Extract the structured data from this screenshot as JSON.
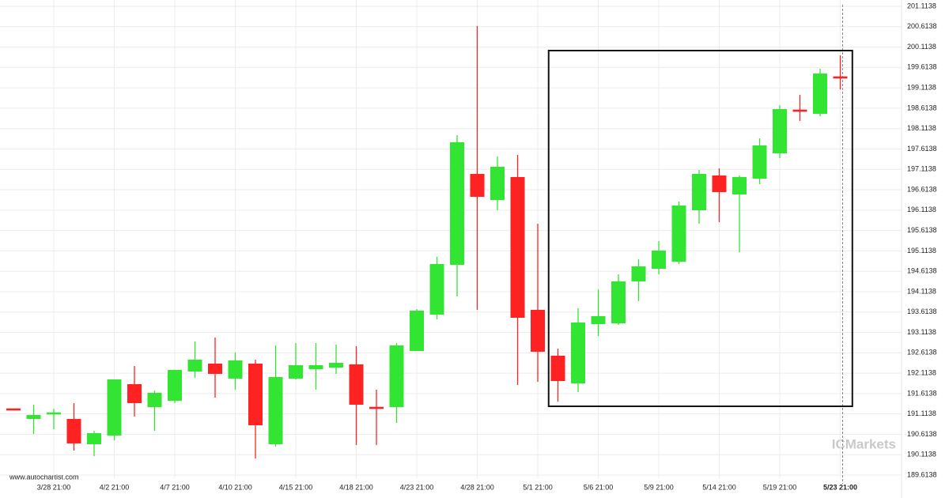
{
  "chart_data": {
    "type": "candlestick",
    "source": "www.autochartist.com",
    "watermark": "ICMarkets",
    "up_color": "#33e533",
    "down_color": "#ff2222",
    "categories": [
      null,
      null,
      "3/28 21:00",
      null,
      null,
      "4/2 21:00",
      null,
      null,
      "4/7 21:00",
      null,
      null,
      "4/10 21:00",
      null,
      null,
      "4/15 21:00",
      null,
      null,
      "4/18 21:00",
      null,
      null,
      "4/23 21:00",
      null,
      null,
      "4/28 21:00",
      null,
      null,
      "5/1 21:00",
      null,
      null,
      "5/6 21:00",
      null,
      null,
      "5/9 21:00",
      null,
      null,
      "5/14 21:00",
      null,
      null,
      "5/19 21:00",
      null,
      null,
      "5/23 21:00"
    ],
    "open": [
      191.224,
      190.992,
      191.127,
      190.992,
      190.371,
      190.585,
      191.845,
      191.283,
      191.438,
      192.155,
      192.349,
      191.981,
      192.349,
      190.371,
      191.981,
      192.213,
      192.252,
      192.33,
      191.263,
      191.283,
      192.659,
      193.551,
      194.773,
      197.003,
      196.363,
      196.925,
      193.668,
      192.543,
      191.864,
      193.318,
      193.338,
      194.366,
      194.676,
      194.85,
      196.111,
      196.964,
      196.499,
      196.886,
      197.507,
      198.554,
      198.477,
      199.369
    ],
    "high": [
      191.224,
      191.341,
      191.244,
      191.38,
      190.701,
      191.961,
      192.291,
      191.69,
      192.194,
      192.892,
      192.989,
      192.621,
      192.446,
      192.795,
      192.853,
      192.853,
      192.814,
      192.776,
      191.709,
      192.853,
      193.687,
      194.967,
      197.953,
      200.629,
      197.429,
      197.468,
      195.781,
      192.717,
      193.707,
      194.172,
      194.54,
      194.909,
      195.355,
      196.324,
      197.1,
      197.139,
      196.964,
      197.876,
      198.69,
      198.942,
      199.582,
      199.912
    ],
    "low": [
      191.224,
      190.623,
      190.74,
      190.216,
      190.08,
      190.468,
      191.05,
      190.701,
      191.38,
      191.999,
      191.515,
      191.709,
      190.022,
      190.313,
      191.961,
      191.709,
      192.097,
      190.352,
      190.352,
      190.895,
      192.659,
      193.435,
      193.997,
      193.668,
      196.111,
      191.825,
      191.903,
      191.418,
      191.651,
      193.028,
      193.299,
      193.881,
      194.54,
      194.792,
      195.781,
      195.82,
      195.084,
      196.751,
      197.391,
      198.302,
      198.418,
      199.078
    ],
    "close": [
      191.224,
      191.089,
      191.127,
      190.391,
      190.643,
      191.961,
      191.38,
      191.632,
      192.194,
      192.446,
      192.097,
      192.427,
      190.837,
      192.02,
      192.31,
      192.31,
      192.368,
      191.341,
      191.263,
      192.795,
      193.648,
      194.792,
      197.779,
      196.441,
      197.178,
      193.474,
      192.64,
      191.922,
      193.357,
      193.513,
      194.366,
      194.734,
      195.122,
      196.227,
      197.003,
      196.557,
      196.925,
      197.701,
      198.593,
      198.554,
      199.466,
      199.369
    ],
    "direction": [
      "down",
      "up",
      "up",
      "down",
      "up",
      "up",
      "down",
      "up",
      "up",
      "up",
      "down",
      "up",
      "down",
      "up",
      "up",
      "up",
      "up",
      "down",
      "down",
      "up",
      "up",
      "up",
      "up",
      "down",
      "up",
      "down",
      "down",
      "down",
      "up",
      "up",
      "up",
      "up",
      "up",
      "up",
      "up",
      "down",
      "up",
      "up",
      "up",
      "down",
      "up",
      "down"
    ],
    "pattern": {
      "high": 200.028,
      "low": 191.302
    },
    "ylim": [
      189.537,
      201.269
    ],
    "yticks": [
      201.1138,
      200.6138,
      200.1138,
      199.6138,
      199.1138,
      198.6138,
      198.1138,
      197.6138,
      197.1138,
      196.6138,
      196.1138,
      195.6138,
      195.1138,
      194.6138,
      194.1138,
      193.6138,
      193.1138,
      192.6138,
      192.1138,
      191.6138,
      191.1138,
      190.6138,
      190.1138,
      189.6138
    ],
    "grid": true
  }
}
